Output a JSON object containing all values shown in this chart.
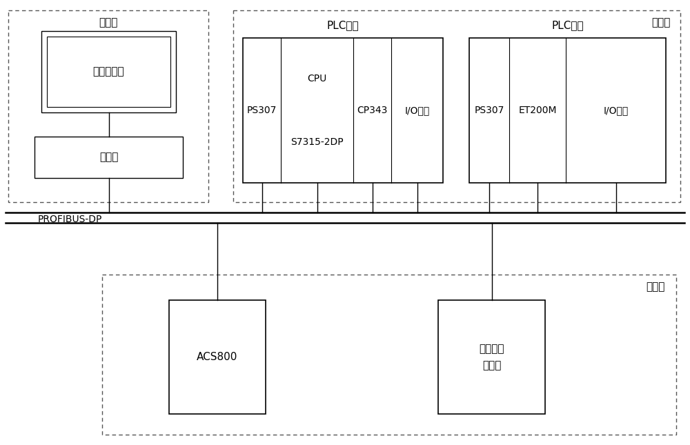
{
  "bg_color": "#ffffff",
  "jiankong_label": "监控层",
  "xianchang_label": "现场层",
  "plc_master_label": "PLC主站",
  "plc_slave_label": "PLC从站",
  "shebei_label": "设备层",
  "profibus_label": "PROFIBUS-DP",
  "lcd_text": "液晶显示器",
  "gongkong_text": "工控机",
  "ps307_1_text": "PS307",
  "cpu_top_text": "CPU",
  "cpu_bot_text": "S7315-2DP",
  "cp343_text": "CP343",
  "io1_text": "I/O模块",
  "ps307_2_text": "PS307",
  "et200m_text": "ET200M",
  "io2_text": "I/O模块",
  "acs800_text": "ACS800",
  "sensor_line1": "传感器和",
  "sensor_line2": "脉冲阀"
}
